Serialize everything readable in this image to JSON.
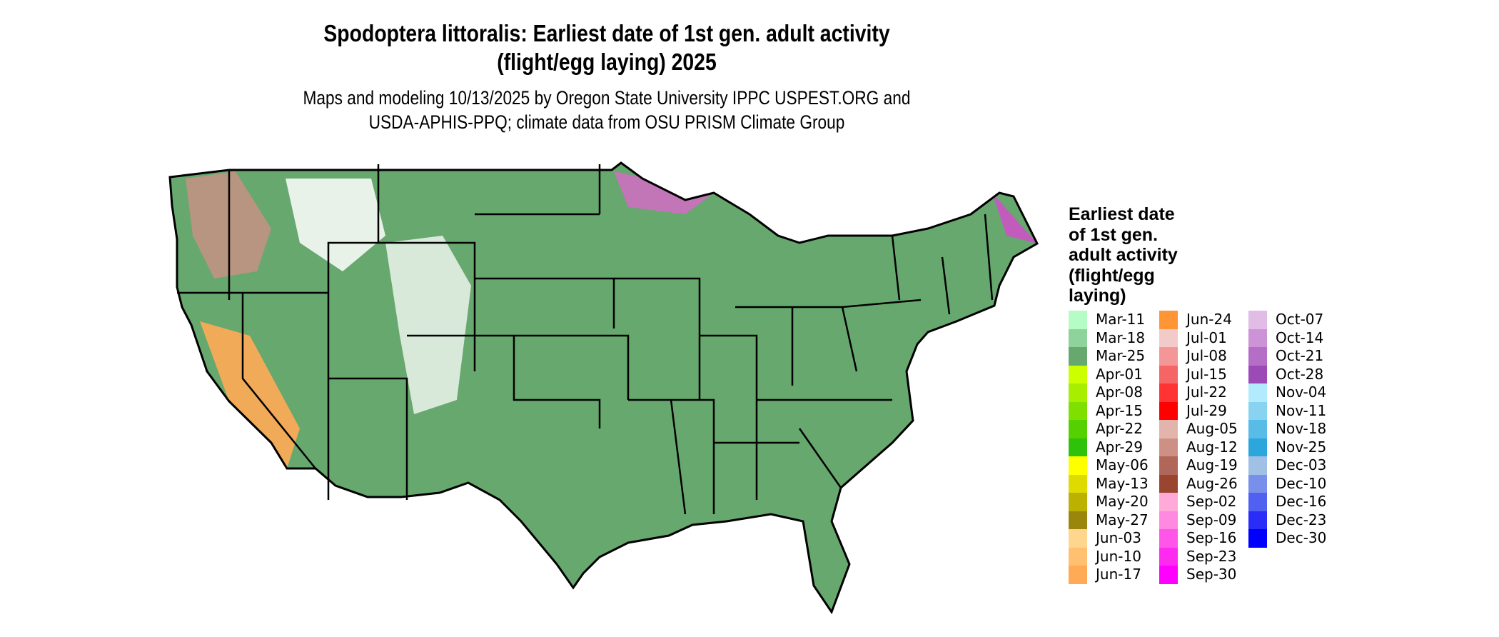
{
  "title": {
    "line1": "Spodoptera littoralis: Earliest date of 1st gen. adult activity",
    "line2": "(flight/egg laying) 2025"
  },
  "subtitle": {
    "line1": "Maps and modeling 10/13/2025 by Oregon State University IPPC USPEST.ORG and",
    "line2": "USDA-APHIS-PPQ; climate data from OSU PRISM Climate Group"
  },
  "legend": {
    "title_lines": [
      "Earliest date",
      "of 1st gen.",
      "adult activity",
      "(flight/egg",
      "laying)"
    ],
    "items": [
      {
        "label": "Mar-11",
        "color": "#b6fcc6"
      },
      {
        "label": "Mar-18",
        "color": "#8ed39b"
      },
      {
        "label": "Mar-25",
        "color": "#66a86e"
      },
      {
        "label": "Apr-01",
        "color": "#ccff00"
      },
      {
        "label": "Apr-08",
        "color": "#a8ee00"
      },
      {
        "label": "Apr-15",
        "color": "#7fe000"
      },
      {
        "label": "Apr-22",
        "color": "#55d000"
      },
      {
        "label": "Apr-29",
        "color": "#2ec20a"
      },
      {
        "label": "May-06",
        "color": "#ffff00"
      },
      {
        "label": "May-13",
        "color": "#dedb00"
      },
      {
        "label": "May-20",
        "color": "#bcb000"
      },
      {
        "label": "May-27",
        "color": "#9a860a"
      },
      {
        "label": "Jun-03",
        "color": "#ffd68e"
      },
      {
        "label": "Jun-10",
        "color": "#ffc070"
      },
      {
        "label": "Jun-17",
        "color": "#ffaa55"
      },
      {
        "label": "Jun-24",
        "color": "#ff9535"
      },
      {
        "label": "Jul-01",
        "color": "#f2caca"
      },
      {
        "label": "Jul-08",
        "color": "#f49696"
      },
      {
        "label": "Jul-15",
        "color": "#f56565"
      },
      {
        "label": "Jul-22",
        "color": "#ff3333"
      },
      {
        "label": "Jul-29",
        "color": "#ff0000"
      },
      {
        "label": "Aug-05",
        "color": "#e2b4ac"
      },
      {
        "label": "Aug-12",
        "color": "#cc9084"
      },
      {
        "label": "Aug-19",
        "color": "#b0675a"
      },
      {
        "label": "Aug-26",
        "color": "#9a4530"
      },
      {
        "label": "Sep-02",
        "color": "#ffaad8"
      },
      {
        "label": "Sep-09",
        "color": "#ff88e0"
      },
      {
        "label": "Sep-16",
        "color": "#ff55e8"
      },
      {
        "label": "Sep-23",
        "color": "#ff2af0"
      },
      {
        "label": "Sep-30",
        "color": "#ff00ff"
      },
      {
        "label": "Oct-07",
        "color": "#e0bce6"
      },
      {
        "label": "Oct-14",
        "color": "#cc94d6"
      },
      {
        "label": "Oct-21",
        "color": "#b46ec6"
      },
      {
        "label": "Oct-28",
        "color": "#9c4ab6"
      },
      {
        "label": "Nov-04",
        "color": "#b2eafe"
      },
      {
        "label": "Nov-11",
        "color": "#88d4f0"
      },
      {
        "label": "Nov-18",
        "color": "#58bce6"
      },
      {
        "label": "Nov-25",
        "color": "#2ca6dc"
      },
      {
        "label": "Dec-03",
        "color": "#a0c0e6"
      },
      {
        "label": "Dec-10",
        "color": "#7890ea"
      },
      {
        "label": "Dec-16",
        "color": "#5060f0"
      },
      {
        "label": "Dec-23",
        "color": "#2a2cf8"
      },
      {
        "label": "Dec-30",
        "color": "#0000ff"
      }
    ]
  }
}
